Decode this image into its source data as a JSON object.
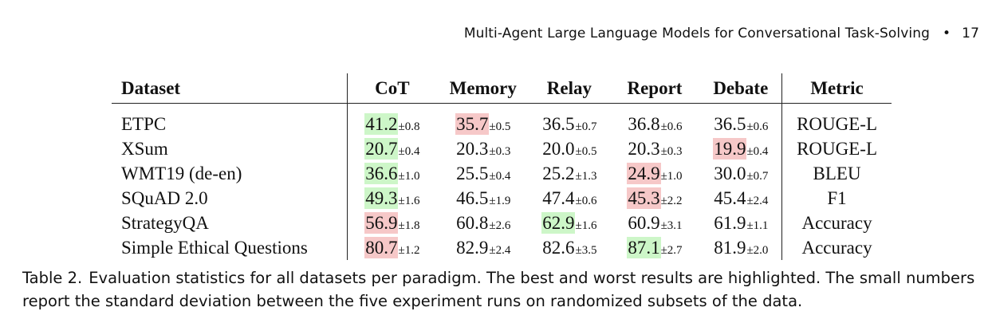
{
  "header": {
    "running_title": "Multi-Agent Large Language Models for Conversational Task-Solving",
    "bullet": "•",
    "page_number": "17"
  },
  "table": {
    "columns": [
      "Dataset",
      "CoT",
      "Memory",
      "Relay",
      "Report",
      "Debate",
      "Metric"
    ],
    "rows": [
      {
        "dataset": "ETPC",
        "cells": [
          {
            "value": "41.2",
            "sd": "±0.8",
            "mark": "best"
          },
          {
            "value": "35.7",
            "sd": "±0.5",
            "mark": "worst"
          },
          {
            "value": "36.5",
            "sd": "±0.7",
            "mark": ""
          },
          {
            "value": "36.8",
            "sd": "±0.6",
            "mark": ""
          },
          {
            "value": "36.5",
            "sd": "±0.6",
            "mark": ""
          }
        ],
        "metric": "ROUGE-L"
      },
      {
        "dataset": "XSum",
        "cells": [
          {
            "value": "20.7",
            "sd": "±0.4",
            "mark": "best"
          },
          {
            "value": "20.3",
            "sd": "±0.3",
            "mark": ""
          },
          {
            "value": "20.0",
            "sd": "±0.5",
            "mark": ""
          },
          {
            "value": "20.3",
            "sd": "±0.3",
            "mark": ""
          },
          {
            "value": "19.9",
            "sd": "±0.4",
            "mark": "worst"
          }
        ],
        "metric": "ROUGE-L"
      },
      {
        "dataset": "WMT19 (de-en)",
        "cells": [
          {
            "value": "36.6",
            "sd": "±1.0",
            "mark": "best"
          },
          {
            "value": "25.5",
            "sd": "±0.4",
            "mark": ""
          },
          {
            "value": "25.2",
            "sd": "±1.3",
            "mark": ""
          },
          {
            "value": "24.9",
            "sd": "±1.0",
            "mark": "worst"
          },
          {
            "value": "30.0",
            "sd": "±0.7",
            "mark": ""
          }
        ],
        "metric": "BLEU"
      },
      {
        "dataset": "SQuAD 2.0",
        "cells": [
          {
            "value": "49.3",
            "sd": "±1.6",
            "mark": "best"
          },
          {
            "value": "46.5",
            "sd": "±1.9",
            "mark": ""
          },
          {
            "value": "47.4",
            "sd": "±0.6",
            "mark": ""
          },
          {
            "value": "45.3",
            "sd": "±2.2",
            "mark": "worst"
          },
          {
            "value": "45.4",
            "sd": "±2.4",
            "mark": ""
          }
        ],
        "metric": "F1"
      },
      {
        "dataset": "StrategyQA",
        "cells": [
          {
            "value": "56.9",
            "sd": "±1.8",
            "mark": "worst"
          },
          {
            "value": "60.8",
            "sd": "±2.6",
            "mark": ""
          },
          {
            "value": "62.9",
            "sd": "±1.6",
            "mark": "best"
          },
          {
            "value": "60.9",
            "sd": "±3.1",
            "mark": ""
          },
          {
            "value": "61.9",
            "sd": "±1.1",
            "mark": ""
          }
        ],
        "metric": "Accuracy"
      },
      {
        "dataset": "Simple Ethical Questions",
        "cells": [
          {
            "value": "80.7",
            "sd": "±1.2",
            "mark": "worst"
          },
          {
            "value": "82.9",
            "sd": "±2.4",
            "mark": ""
          },
          {
            "value": "82.6",
            "sd": "±3.5",
            "mark": ""
          },
          {
            "value": "87.1",
            "sd": "±2.7",
            "mark": "best"
          },
          {
            "value": "81.9",
            "sd": "±2.0",
            "mark": ""
          }
        ],
        "metric": "Accuracy"
      }
    ],
    "highlight_colors": {
      "best": "#cdf6c8",
      "worst": "#f6c8c8"
    }
  },
  "caption": {
    "label": "Table 2.",
    "text": "Evaluation statistics for all datasets per paradigm. The best and worst results are highlighted. The small numbers report the standard deviation between the five experiment runs on randomized subsets of the data."
  }
}
